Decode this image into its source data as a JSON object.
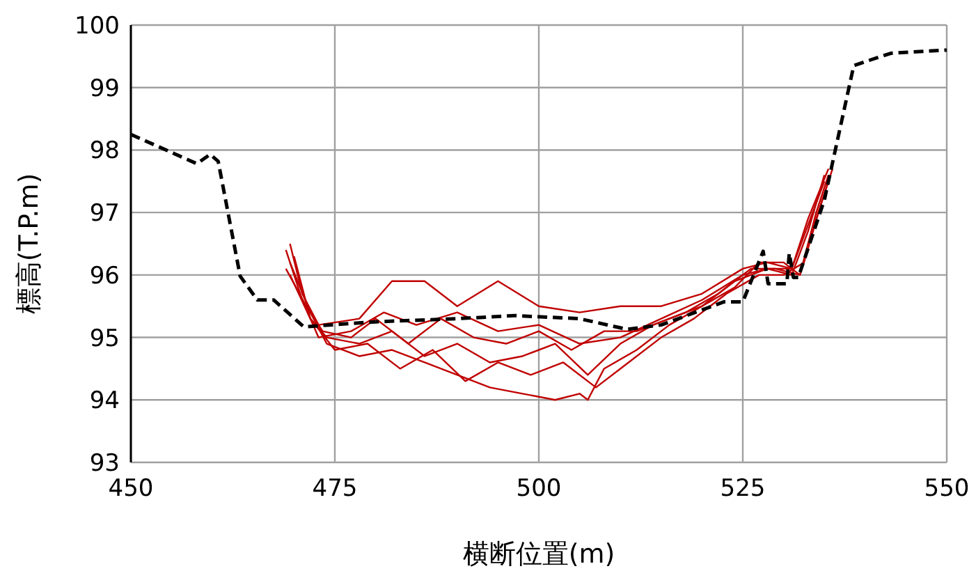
{
  "chart_data": {
    "type": "line",
    "xlabel": "横断位置(m)",
    "ylabel": "標高(T.P.m)",
    "xlim": [
      450,
      550
    ],
    "xticks": [
      450,
      475,
      500,
      525,
      550
    ],
    "ylim": [
      93,
      100
    ],
    "yticks": [
      93,
      94,
      95,
      96,
      97,
      98,
      99,
      100
    ],
    "grid": true,
    "series": [
      {
        "color": "#c00000",
        "line_style": "solid",
        "x": [
          469.5,
          471,
          473,
          478,
          482,
          486,
          490,
          495,
          500,
          505,
          510,
          515,
          520,
          525,
          528,
          531,
          533,
          535.5
        ],
        "values": [
          96.5,
          95.7,
          95.2,
          95.3,
          95.9,
          95.9,
          95.5,
          95.9,
          95.5,
          95.4,
          95.5,
          95.5,
          95.7,
          96.1,
          96.2,
          96.1,
          96.9,
          97.7
        ]
      },
      {
        "color": "#c00000",
        "line_style": "solid",
        "x": [
          469,
          471,
          473,
          477,
          481,
          485,
          490,
          495,
          500,
          505,
          510,
          515,
          520,
          525,
          528,
          531,
          533,
          535
        ],
        "values": [
          96.4,
          95.6,
          95.0,
          95.1,
          95.4,
          95.2,
          95.4,
          95.1,
          95.2,
          94.9,
          95.0,
          95.3,
          95.6,
          96.0,
          96.1,
          96.0,
          96.7,
          97.6
        ]
      },
      {
        "color": "#c00000",
        "line_style": "solid",
        "x": [
          469.5,
          472,
          474,
          478,
          482,
          486,
          490,
          494,
          498,
          502,
          505,
          506,
          508,
          512,
          516,
          520,
          524,
          528,
          531,
          533,
          535
        ],
        "values": [
          96.2,
          95.4,
          94.9,
          94.7,
          94.8,
          94.6,
          94.4,
          94.2,
          94.1,
          94.0,
          94.1,
          94.0,
          94.5,
          94.8,
          95.2,
          95.5,
          95.9,
          96.1,
          96.1,
          96.8,
          97.5
        ]
      },
      {
        "color": "#c00000",
        "line_style": "solid",
        "x": [
          470,
          472,
          474,
          478,
          482,
          486,
          490,
          494,
          498,
          502,
          506,
          510,
          514,
          518,
          522,
          526,
          529,
          532,
          534,
          535.5
        ],
        "values": [
          96.3,
          95.3,
          95.0,
          94.9,
          95.1,
          94.7,
          94.9,
          94.6,
          94.7,
          94.9,
          94.4,
          94.9,
          95.2,
          95.4,
          95.7,
          96.1,
          96.1,
          96.0,
          97.0,
          97.6
        ]
      },
      {
        "color": "#c00000",
        "line_style": "solid",
        "x": [
          469,
          471.5,
          473.5,
          477,
          480,
          484,
          488,
          492,
          496,
          500,
          504,
          508,
          512,
          516,
          520,
          524,
          527,
          530,
          532,
          534,
          536
        ],
        "values": [
          96.1,
          95.5,
          95.1,
          95.0,
          95.3,
          94.9,
          95.3,
          95.0,
          94.9,
          95.1,
          94.8,
          95.1,
          95.1,
          95.3,
          95.5,
          95.8,
          96.2,
          96.2,
          96.0,
          96.9,
          97.7
        ]
      },
      {
        "color": "#c00000",
        "line_style": "solid",
        "x": [
          469.5,
          472,
          475,
          479,
          483,
          487,
          491,
          495,
          499,
          503,
          507,
          511,
          515,
          519,
          523,
          527,
          530,
          532.5,
          534.5,
          535.5
        ],
        "values": [
          96.0,
          95.3,
          94.8,
          94.9,
          94.5,
          94.8,
          94.3,
          94.6,
          94.4,
          94.6,
          94.2,
          94.6,
          95.0,
          95.3,
          95.7,
          96.0,
          96.0,
          96.2,
          97.1,
          97.5
        ]
      },
      {
        "color": "#000000",
        "line_style": "dashed",
        "x": [
          450,
          458.1,
          459.7,
          460.7,
          463.4,
          465.5,
          467.5,
          471.2,
          480,
          490,
          497,
          505,
          510.8,
          515,
          522.7,
          525,
          527.5,
          528.1,
          530.4,
          530.7,
          531.2,
          531.8,
          535,
          538.6,
          540.6,
          543.2,
          550
        ],
        "values": [
          98.25,
          97.78,
          97.93,
          97.82,
          95.98,
          95.6,
          95.6,
          95.17,
          95.25,
          95.3,
          95.35,
          95.3,
          95.13,
          95.2,
          95.57,
          95.57,
          96.38,
          95.86,
          95.86,
          96.35,
          95.96,
          95.96,
          97.2,
          99.35,
          99.44,
          99.55,
          99.6
        ]
      }
    ]
  }
}
